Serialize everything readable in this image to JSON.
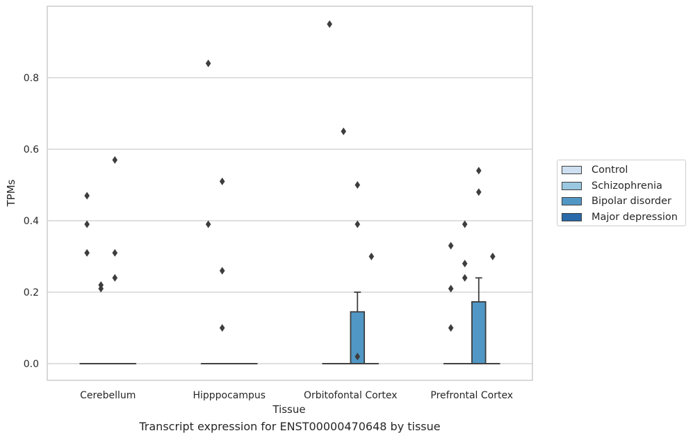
{
  "caption": "Transcript expression for ENST00000470648 by tissue",
  "chart_data": {
    "type": "box",
    "xlabel": "Tissue",
    "ylabel": "TPMs",
    "categories": [
      "Cerebellum",
      "Hipppocampus",
      "Orbitofontal Cortex",
      "Prefrontal Cortex"
    ],
    "ylim": [
      -0.045,
      1.0
    ],
    "yticks": [
      0.0,
      0.2,
      0.4,
      0.6,
      0.8
    ],
    "ytick_labels": [
      "0.0",
      "0.2",
      "0.4",
      "0.6",
      "0.8"
    ],
    "grid": true,
    "legend_position": "right",
    "series": [
      {
        "name": "Control",
        "color": "#cddff0",
        "boxes": [
          {
            "q1": 0,
            "median": 0,
            "q3": 0,
            "whisker_low": 0,
            "whisker_high": 0,
            "outliers": [
              0.47,
              0.39,
              0.31
            ]
          },
          {
            "q1": 0,
            "median": 0,
            "q3": 0,
            "whisker_low": 0,
            "whisker_high": 0,
            "outliers": [
              0.84,
              0.39
            ]
          },
          {
            "q1": 0,
            "median": 0,
            "q3": 0,
            "whisker_low": 0,
            "whisker_high": 0,
            "outliers": [
              0.95
            ]
          },
          {
            "q1": 0,
            "median": 0,
            "q3": 0,
            "whisker_low": 0,
            "whisker_high": 0,
            "outliers": [
              0.33,
              0.21,
              0.1
            ]
          }
        ]
      },
      {
        "name": "Schizophrenia",
        "color": "#9ac8e0",
        "boxes": [
          {
            "q1": 0,
            "median": 0,
            "q3": 0,
            "whisker_low": 0,
            "whisker_high": 0,
            "outliers": [
              0.22,
              0.21
            ]
          },
          {
            "q1": 0,
            "median": 0,
            "q3": 0,
            "whisker_low": 0,
            "whisker_high": 0,
            "outliers": [
              0.51,
              0.26,
              0.1
            ]
          },
          {
            "q1": 0,
            "median": 0,
            "q3": 0,
            "whisker_low": 0,
            "whisker_high": 0,
            "outliers": [
              0.65
            ]
          },
          {
            "q1": 0,
            "median": 0,
            "q3": 0,
            "whisker_low": 0,
            "whisker_high": 0,
            "outliers": [
              0.39,
              0.28,
              0.24
            ]
          }
        ]
      },
      {
        "name": "Bipolar disorder",
        "color": "#5197c5",
        "boxes": [
          {
            "q1": 0,
            "median": 0,
            "q3": 0,
            "whisker_low": 0,
            "whisker_high": 0,
            "outliers": [
              0.57,
              0.31,
              0.24
            ]
          },
          {
            "q1": 0,
            "median": 0,
            "q3": 0,
            "whisker_low": 0,
            "whisker_high": 0,
            "outliers": []
          },
          {
            "q1": 0,
            "median": 0,
            "q3": 0.145,
            "whisker_low": 0,
            "whisker_high": 0.2,
            "outliers": [
              0.5,
              0.39,
              0.02
            ]
          },
          {
            "q1": 0,
            "median": 0,
            "q3": 0.173,
            "whisker_low": 0,
            "whisker_high": 0.24,
            "outliers": [
              0.54,
              0.48
            ]
          }
        ]
      },
      {
        "name": "Major depression",
        "color": "#2a6aa9",
        "boxes": [
          {
            "q1": 0,
            "median": 0,
            "q3": 0,
            "whisker_low": 0,
            "whisker_high": 0,
            "outliers": []
          },
          {
            "q1": 0,
            "median": 0,
            "q3": 0,
            "whisker_low": 0,
            "whisker_high": 0,
            "outliers": []
          },
          {
            "q1": 0,
            "median": 0,
            "q3": 0,
            "whisker_low": 0,
            "whisker_high": 0,
            "outliers": [
              0.3
            ]
          },
          {
            "q1": 0,
            "median": 0,
            "q3": 0,
            "whisker_low": 0,
            "whisker_high": 0,
            "outliers": [
              0.3
            ]
          }
        ]
      }
    ]
  }
}
